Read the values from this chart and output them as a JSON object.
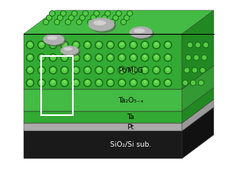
{
  "title": "",
  "layers": [
    {
      "name": "SiO₂/Si sub.",
      "color_top": "#1a1a1a",
      "color_side": "#111111",
      "text_color": "white"
    },
    {
      "name": "Pt",
      "color_top": "#b8b8b8",
      "color_side": "#888888",
      "text_color": "white"
    },
    {
      "name": "Ta",
      "color_top": "#4caf50",
      "color_side": "#2e7d32",
      "text_color": "white"
    },
    {
      "name": "Ta₂O₅₋ₓ",
      "color_top": "#43a047",
      "color_side": "#1b5e20",
      "text_color": "white"
    },
    {
      "name": "Pt/MLG",
      "color_top": "#388e3c",
      "color_side": "#1b5e20",
      "text_color": "white"
    }
  ],
  "bg_color": "white",
  "electrode_color": "#c0c0c0",
  "electrode_edge": "#888888"
}
